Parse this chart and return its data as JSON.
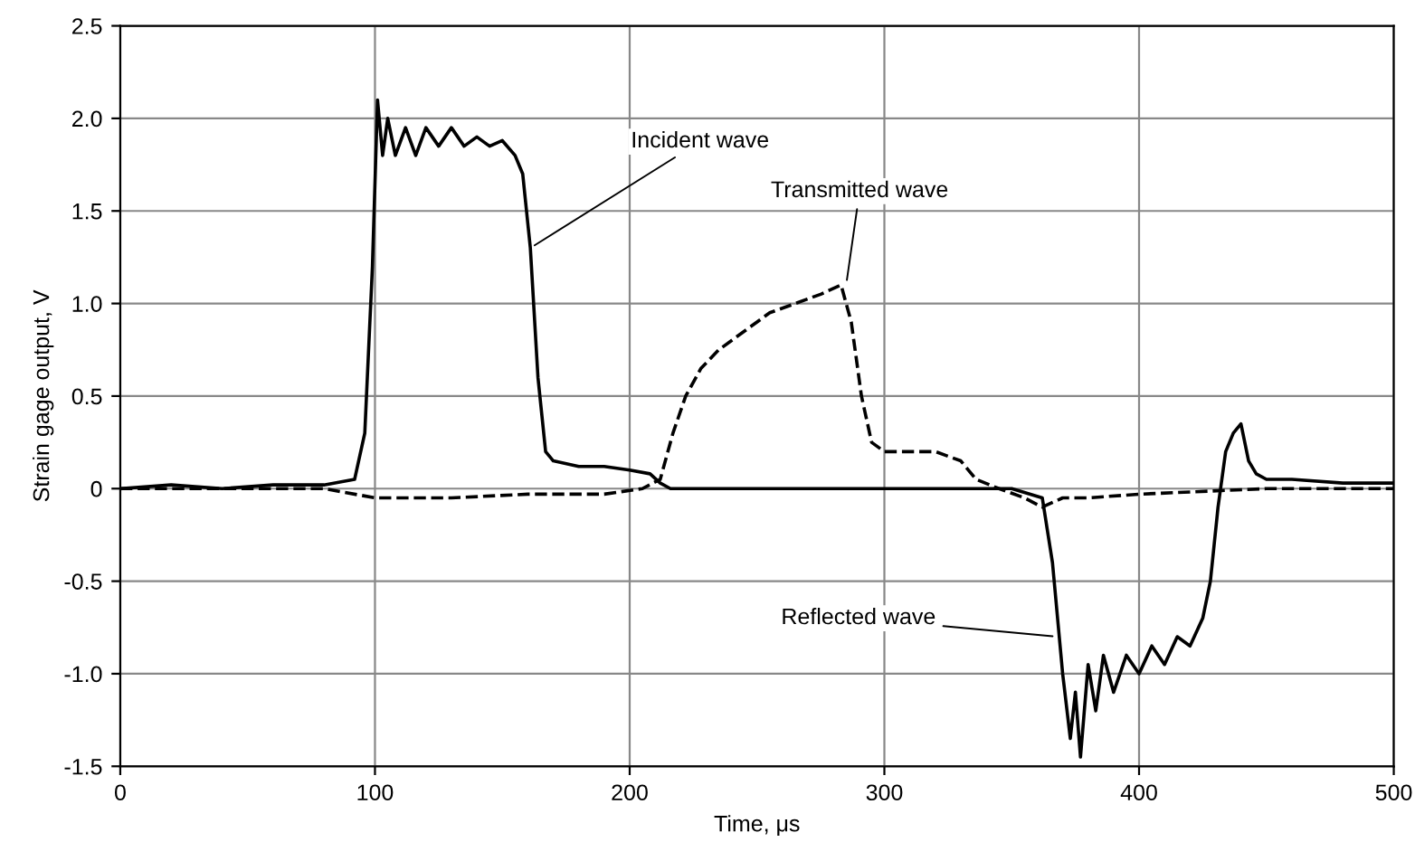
{
  "chart_data": {
    "type": "line",
    "xlabel": "Time, μs",
    "ylabel": "Strain gage output, V",
    "xlim": [
      0,
      500
    ],
    "xticks": [
      0,
      100,
      200,
      300,
      400,
      500
    ],
    "ylim": [
      -1.5,
      2.5
    ],
    "yticks": [
      -1.5,
      {
        "value": -1,
        "label": "-1.0"
      },
      -0.5,
      0,
      0.5,
      {
        "value": 1,
        "label": "1.0"
      },
      1.5,
      {
        "value": 2,
        "label": "2.0"
      },
      2.5
    ],
    "grid": true,
    "legend": false,
    "marker": "none",
    "series": [
      {
        "color": "#000000",
        "line_style": "solid",
        "x": [
          0,
          20,
          40,
          60,
          80,
          92,
          96,
          99,
          101,
          103,
          105,
          108,
          112,
          116,
          120,
          125,
          130,
          135,
          140,
          145,
          150,
          155,
          158,
          161,
          164,
          167,
          170,
          180,
          190,
          200,
          208,
          212,
          216,
          240,
          280,
          320,
          350,
          362,
          366,
          370,
          373,
          375,
          377,
          380,
          383,
          386,
          390,
          395,
          400,
          405,
          410,
          415,
          420,
          425,
          428,
          431,
          434,
          437,
          440,
          443,
          446,
          450,
          460,
          480,
          500
        ],
        "values": [
          0.0,
          0.02,
          0.0,
          0.02,
          0.02,
          0.05,
          0.3,
          1.2,
          2.1,
          1.8,
          2.0,
          1.8,
          1.95,
          1.8,
          1.95,
          1.85,
          1.95,
          1.85,
          1.9,
          1.85,
          1.88,
          1.8,
          1.7,
          1.3,
          0.6,
          0.2,
          0.15,
          0.12,
          0.12,
          0.1,
          0.08,
          0.03,
          0.0,
          0.0,
          0.0,
          0.0,
          0.0,
          -0.05,
          -0.4,
          -1.0,
          -1.35,
          -1.1,
          -1.45,
          -0.95,
          -1.2,
          -0.9,
          -1.1,
          -0.9,
          -1.0,
          -0.85,
          -0.95,
          -0.8,
          -0.85,
          -0.7,
          -0.5,
          -0.1,
          0.2,
          0.3,
          0.35,
          0.15,
          0.08,
          0.05,
          0.05,
          0.03,
          0.03
        ]
      },
      {
        "color": "#000000",
        "line_style": "dashed",
        "x": [
          0,
          40,
          80,
          100,
          130,
          160,
          190,
          205,
          212,
          217,
          222,
          228,
          235,
          245,
          255,
          265,
          275,
          283,
          287,
          291,
          295,
          300,
          320,
          330,
          336,
          345,
          355,
          362,
          370,
          380,
          400,
          450,
          500
        ],
        "values": [
          0.0,
          0.0,
          0.0,
          -0.05,
          -0.05,
          -0.03,
          -0.03,
          0.0,
          0.05,
          0.3,
          0.5,
          0.65,
          0.75,
          0.85,
          0.95,
          1.0,
          1.05,
          1.1,
          0.9,
          0.5,
          0.25,
          0.2,
          0.2,
          0.15,
          0.05,
          0.0,
          -0.05,
          -0.1,
          -0.05,
          -0.05,
          -0.03,
          0.0,
          0.0
        ]
      }
    ],
    "annotations": [
      {
        "text": "Incident wave",
        "x": 161,
        "y": 1.3
      },
      {
        "text": "Transmitted wave",
        "x": 285,
        "y": 1.1
      },
      {
        "text": "Reflected wave",
        "x": 368,
        "y": -0.8
      }
    ]
  }
}
